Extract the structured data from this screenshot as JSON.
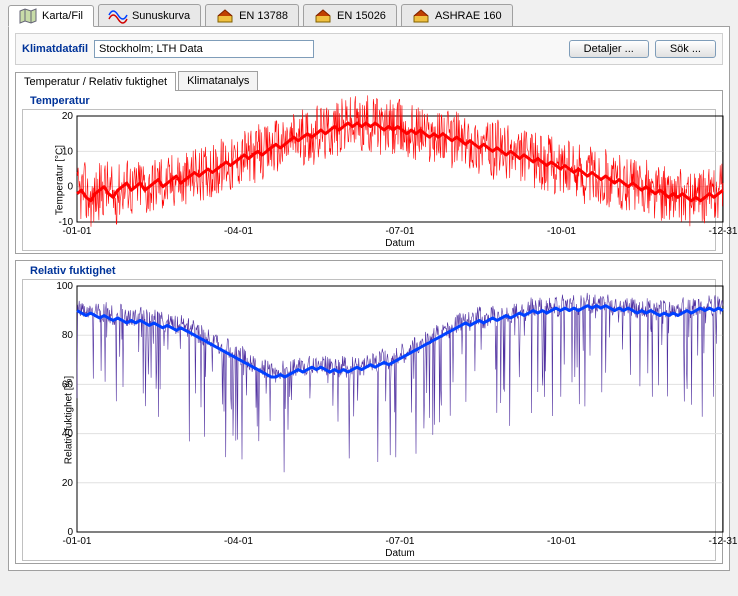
{
  "top_tabs": [
    {
      "label": "Karta/Fil",
      "icon": "map"
    },
    {
      "label": "Sunuskurva",
      "icon": "curve"
    },
    {
      "label": "EN 13788",
      "icon": "house"
    },
    {
      "label": "EN 15026",
      "icon": "house"
    },
    {
      "label": "ASHRAE 160",
      "icon": "house"
    }
  ],
  "active_top_tab": 0,
  "datafile": {
    "label": "Klimatdatafil",
    "value": "Stockholm; LTH Data",
    "details_btn": "Detaljer ...",
    "search_btn": "Sök ..."
  },
  "sub_tabs": [
    "Temperatur / Relativ fuktighet",
    "Klimatanalys"
  ],
  "active_sub_tab": 0,
  "charts": {
    "temp": {
      "title": "Temperatur",
      "ylabel": "Temperatur [°C]",
      "xlabel": "Datum",
      "ylim": [
        -10,
        20
      ],
      "ytick_step": 10,
      "xticks": [
        "-01-01",
        "-04-01",
        "-07-01",
        "-10-01",
        "-12-31"
      ],
      "line_color": "#ff0000",
      "line_width_raw": 0.6,
      "line_width_avg": 3,
      "background": "#ffffff",
      "grid_color": "#e0e0e0",
      "frame_color": "#000000",
      "daily_avg": [
        -2,
        -1,
        -3,
        -4,
        -2,
        -1,
        0,
        -2,
        -3,
        -1,
        0,
        1,
        -1,
        0,
        1,
        -1,
        0,
        1,
        2,
        0,
        1,
        2,
        3,
        1,
        2,
        3,
        4,
        3,
        4,
        5,
        4,
        5,
        6,
        7,
        6,
        7,
        8,
        9,
        8,
        9,
        10,
        9,
        10,
        11,
        12,
        11,
        12,
        13,
        14,
        13,
        14,
        15,
        14,
        15,
        16,
        15,
        16,
        17,
        16,
        17,
        18,
        17,
        18,
        17,
        18,
        17,
        18,
        17,
        16,
        17,
        16,
        17,
        16,
        15,
        16,
        15,
        16,
        15,
        14,
        15,
        14,
        15,
        14,
        13,
        14,
        13,
        12,
        13,
        12,
        11,
        12,
        11,
        10,
        11,
        10,
        9,
        10,
        9,
        8,
        9,
        8,
        7,
        8,
        7,
        6,
        7,
        6,
        5,
        6,
        5,
        4,
        5,
        4,
        3,
        4,
        3,
        2,
        3,
        2,
        1,
        2,
        1,
        0,
        1,
        0,
        -1,
        0,
        -1,
        -2,
        -1,
        -2,
        -3,
        -2,
        -3,
        -2,
        -3,
        -4,
        -3,
        -4,
        -3,
        -2,
        -3,
        -2,
        -1
      ],
      "raw_amplitude": 8
    },
    "rh": {
      "title": "Relativ fuktighet",
      "ylabel": "Relativ fuktighet [%]",
      "xlabel": "Datum",
      "ylim": [
        0,
        100
      ],
      "ytick_step": 20,
      "xticks": [
        "-01-01",
        "-04-01",
        "-07-01",
        "-10-01",
        "-12-31"
      ],
      "line_color_raw": "#5030a0",
      "line_color_avg": "#0040ff",
      "line_width_raw": 0.6,
      "line_width_avg": 3,
      "background": "#ffffff",
      "grid_color": "#e0e0e0",
      "frame_color": "#000000",
      "daily_avg": [
        90,
        89,
        88,
        89,
        88,
        87,
        88,
        87,
        86,
        87,
        86,
        85,
        86,
        85,
        86,
        85,
        84,
        85,
        84,
        83,
        84,
        83,
        82,
        83,
        82,
        81,
        80,
        79,
        78,
        77,
        76,
        75,
        74,
        73,
        72,
        71,
        70,
        69,
        68,
        67,
        66,
        65,
        64,
        63,
        63,
        64,
        63,
        64,
        65,
        66,
        65,
        66,
        67,
        66,
        67,
        66,
        65,
        66,
        65,
        66,
        65,
        66,
        67,
        66,
        67,
        68,
        67,
        68,
        69,
        68,
        69,
        70,
        71,
        72,
        73,
        74,
        75,
        76,
        77,
        78,
        79,
        80,
        81,
        82,
        83,
        84,
        85,
        84,
        85,
        86,
        85,
        86,
        87,
        86,
        87,
        88,
        87,
        88,
        89,
        88,
        89,
        90,
        89,
        90,
        89,
        90,
        91,
        90,
        91,
        90,
        91,
        90,
        91,
        92,
        91,
        92,
        91,
        92,
        91,
        90,
        91,
        90,
        91,
        90,
        89,
        90,
        89,
        90,
        89,
        88,
        89,
        88,
        89,
        88,
        89,
        90,
        89,
        90,
        91,
        90,
        91,
        90,
        91,
        90
      ],
      "raw_amplitude_lo": 45,
      "raw_amplitude_hi": 8
    }
  },
  "colors": {
    "tab_active_bg": "#ffffff",
    "tab_inactive_bg": "#e8e8e8",
    "panel_border": "#a0a0a0",
    "accent_text": "#003399"
  }
}
